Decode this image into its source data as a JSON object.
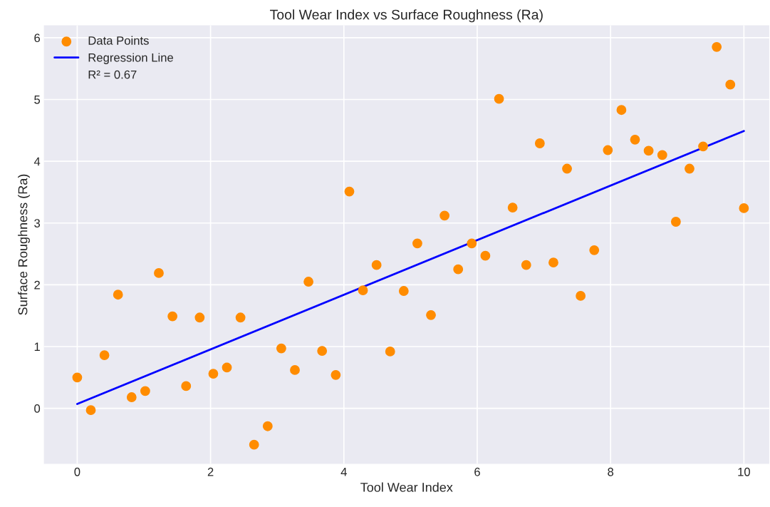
{
  "chart_data": {
    "type": "scatter",
    "title": "Tool Wear Index vs Surface Roughness (Ra)",
    "xlabel": "Tool Wear Index",
    "ylabel": "Surface Roughness (Ra)",
    "annotations": [
      "R² = 0.67"
    ],
    "series": [
      {
        "name": "Data Points",
        "marker": "circle",
        "color": "#ff8c00",
        "x": [
          0,
          0.204,
          0.408,
          0.612,
          0.816,
          1.02,
          1.224,
          1.429,
          1.633,
          1.837,
          2.041,
          2.245,
          2.449,
          2.653,
          2.857,
          3.061,
          3.265,
          3.469,
          3.673,
          3.878,
          4.082,
          4.286,
          4.49,
          4.694,
          4.898,
          5.102,
          5.306,
          5.51,
          5.714,
          5.918,
          6.122,
          6.327,
          6.531,
          6.735,
          6.939,
          7.143,
          7.347,
          7.551,
          7.755,
          7.959,
          8.163,
          8.367,
          8.571,
          8.776,
          8.98,
          9.184,
          9.388,
          9.592,
          9.796,
          10
        ],
        "values": [
          0.5,
          -0.03,
          0.86,
          1.84,
          0.18,
          0.28,
          2.19,
          1.49,
          0.36,
          1.47,
          0.56,
          0.66,
          1.47,
          -0.59,
          -0.29,
          0.97,
          0.62,
          2.05,
          0.93,
          0.54,
          3.51,
          1.91,
          2.32,
          0.92,
          1.9,
          2.67,
          1.51,
          3.12,
          2.25,
          2.67,
          2.47,
          5.01,
          3.25,
          2.32,
          4.29,
          2.36,
          3.88,
          1.82,
          2.56,
          4.18,
          4.83,
          4.35,
          4.17,
          4.1,
          3.02,
          3.88,
          4.24,
          5.85,
          5.24,
          3.24
        ]
      },
      {
        "name": "Regression Line",
        "type": "line",
        "color": "#0000ff",
        "x": [
          0,
          10
        ],
        "values": [
          0.07,
          4.49
        ]
      }
    ],
    "xlim": [
      -0.5,
      10.38
    ],
    "ylim": [
      -0.9,
      6.2
    ],
    "xticks": [
      0,
      2,
      4,
      6,
      8,
      10
    ],
    "yticks": [
      0,
      1,
      2,
      3,
      4,
      5,
      6
    ],
    "grid": true,
    "legend": "top left"
  }
}
